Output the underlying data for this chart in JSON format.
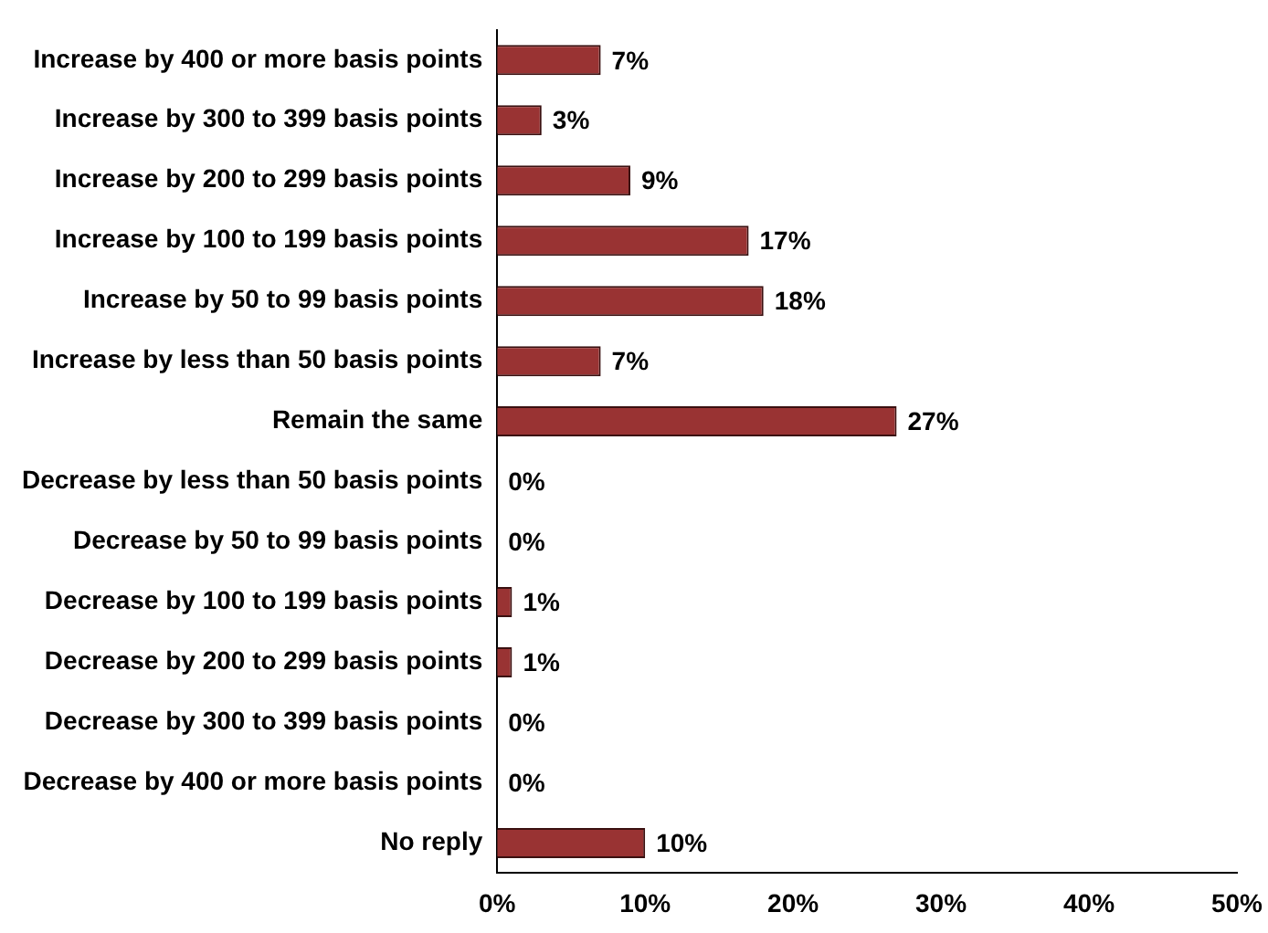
{
  "chart_data": {
    "type": "bar",
    "orientation": "horizontal",
    "categories": [
      "Increase by 400 or more basis points",
      "Increase by 300 to 399 basis points",
      "Increase by 200 to 299 basis points",
      "Increase by 100 to 199 basis points",
      "Increase by 50 to 99 basis points",
      "Increase by less than 50 basis points",
      "Remain the same",
      "Decrease by less than 50 basis points",
      "Decrease by 50 to 99 basis points",
      "Decrease by 100 to 199 basis points",
      "Decrease by 200 to 299 basis points",
      "Decrease by 300 to 399 basis points",
      "Decrease by 400 or more basis points",
      "No reply"
    ],
    "values": [
      7,
      3,
      9,
      17,
      18,
      7,
      27,
      0,
      0,
      1,
      1,
      0,
      0,
      10
    ],
    "value_labels": [
      "7%",
      "3%",
      "9%",
      "17%",
      "18%",
      "7%",
      "27%",
      "0%",
      "0%",
      "1%",
      "1%",
      "0%",
      "0%",
      "10%"
    ],
    "color": "#993333",
    "xlim": [
      0,
      50
    ],
    "xticks": [
      {
        "value": 0,
        "label": "0%"
      },
      {
        "value": 10,
        "label": "10%"
      },
      {
        "value": 20,
        "label": "20%"
      },
      {
        "value": 30,
        "label": "30%"
      },
      {
        "value": 40,
        "label": "40%"
      },
      {
        "value": 50,
        "label": "50%"
      }
    ],
    "grid": false,
    "legend": false
  }
}
